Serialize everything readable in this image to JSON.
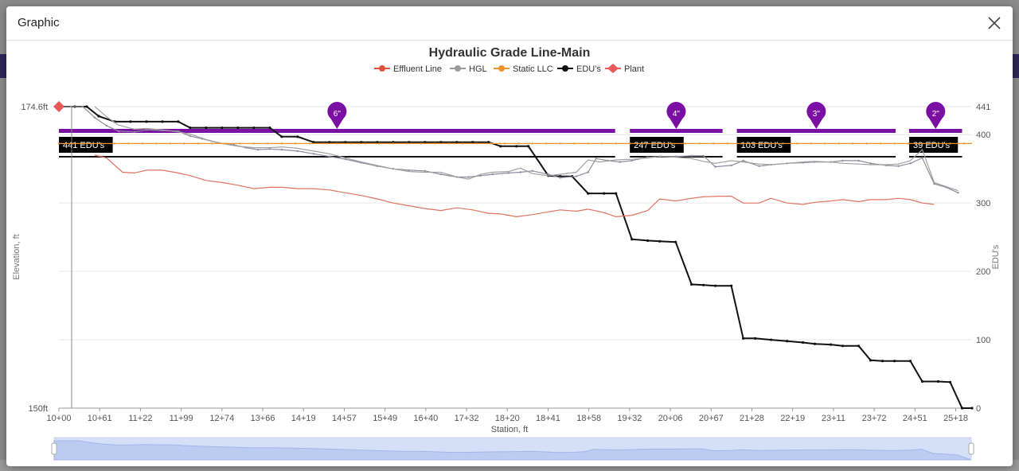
{
  "modal": {
    "title": "Graphic"
  },
  "chart_data": {
    "type": "line",
    "title": "Hydraulic Grade Line-Main",
    "xlabel": "Station, ft",
    "ylabel": "Elevation, ft",
    "y2label": "EDU's",
    "x_ticks": [
      "10+00",
      "10+61",
      "11+22",
      "11+99",
      "12+74",
      "13+66",
      "14+19",
      "14+57",
      "15+49",
      "16+40",
      "17+32",
      "18+20",
      "18+41",
      "18+58",
      "19+32",
      "20+06",
      "20+67",
      "21+28",
      "22+19",
      "23+11",
      "23+72",
      "24+51",
      "25+18"
    ],
    "y_left_ticks": [
      "174.6ft",
      "150ft"
    ],
    "y_right_ticks": [
      "441",
      "400",
      "300",
      "200",
      "100",
      "0"
    ],
    "y2lim": [
      0,
      441
    ],
    "grid": true,
    "legend_position": "top-center",
    "legend": [
      {
        "name": "Effluent Line",
        "color": "#e0503a",
        "marker": "circle"
      },
      {
        "name": "HGL",
        "color": "#9a9a9a",
        "marker": "circle"
      },
      {
        "name": "Static LLC",
        "color": "#f0922a",
        "marker": "circle"
      },
      {
        "name": "EDU's",
        "color": "#111111",
        "marker": "circle"
      },
      {
        "name": "Plant",
        "color": "#e85a5a",
        "marker": "diamond"
      }
    ],
    "pipe_segments": [
      {
        "label": "6\"",
        "edu_label": "441 EDU's",
        "x_start": 0,
        "x_end": 13.98
      },
      {
        "label": "4\"",
        "edu_label": "247 EDU's",
        "x_start": 14.35,
        "x_end": 16.68
      },
      {
        "label": "3\"",
        "edu_label": "103 EDU's",
        "x_start": 17.04,
        "x_end": 21.03
      },
      {
        "label": "2\"",
        "edu_label": "39 EDU's",
        "x_start": 21.37,
        "x_end": 22.7
      }
    ],
    "series": [
      {
        "name": "EDU's",
        "axis": "right",
        "color": "#111111",
        "points": [
          [
            0,
            441
          ],
          [
            0.4,
            441
          ],
          [
            0.7,
            441
          ],
          [
            1.0,
            427
          ],
          [
            1.4,
            419
          ],
          [
            1.8,
            419
          ],
          [
            2.2,
            419
          ],
          [
            2.6,
            419
          ],
          [
            3.0,
            419
          ],
          [
            3.3,
            410
          ],
          [
            3.7,
            410
          ],
          [
            4.1,
            410
          ],
          [
            4.5,
            410
          ],
          [
            4.9,
            410
          ],
          [
            5.3,
            410
          ],
          [
            5.6,
            397
          ],
          [
            6.0,
            397
          ],
          [
            6.4,
            389
          ],
          [
            6.8,
            389
          ],
          [
            7.2,
            389
          ],
          [
            7.6,
            389
          ],
          [
            8.0,
            389
          ],
          [
            8.4,
            389
          ],
          [
            8.8,
            389
          ],
          [
            9.2,
            389
          ],
          [
            9.6,
            389
          ],
          [
            10.0,
            389
          ],
          [
            10.4,
            389
          ],
          [
            10.8,
            389
          ],
          [
            11.1,
            383
          ],
          [
            11.5,
            383
          ],
          [
            11.8,
            383
          ],
          [
            12.3,
            340
          ],
          [
            12.6,
            339
          ],
          [
            12.9,
            339
          ],
          [
            13.3,
            314
          ],
          [
            13.7,
            314
          ],
          [
            14.0,
            314
          ],
          [
            14.4,
            247
          ],
          [
            14.8,
            245
          ],
          [
            15.1,
            244
          ],
          [
            15.5,
            243
          ],
          [
            15.9,
            181
          ],
          [
            16.2,
            180
          ],
          [
            16.5,
            179
          ],
          [
            16.9,
            179
          ],
          [
            17.2,
            102
          ],
          [
            17.5,
            102
          ],
          [
            17.9,
            100
          ],
          [
            18.3,
            98
          ],
          [
            18.7,
            96
          ],
          [
            19.0,
            94
          ],
          [
            19.4,
            93
          ],
          [
            19.7,
            91
          ],
          [
            20.1,
            91
          ],
          [
            20.4,
            70
          ],
          [
            20.7,
            69
          ],
          [
            21.0,
            69
          ],
          [
            21.4,
            69
          ],
          [
            21.7,
            39
          ],
          [
            22.1,
            39
          ],
          [
            22.4,
            38
          ],
          [
            22.7,
            0
          ],
          [
            22.95,
            0
          ]
        ]
      },
      {
        "name": "HGL",
        "axis": "right",
        "color": "#8c8c9e",
        "points": [
          [
            0,
            441
          ],
          [
            0.3,
            441
          ],
          [
            0.6,
            441
          ],
          [
            0.9,
            425
          ],
          [
            1.2,
            413
          ],
          [
            1.5,
            405
          ],
          [
            1.9,
            404
          ],
          [
            2.2,
            407
          ],
          [
            2.6,
            406
          ],
          [
            3.0,
            405
          ],
          [
            3.3,
            398
          ],
          [
            3.6,
            394
          ],
          [
            4.0,
            388
          ],
          [
            4.4,
            385
          ],
          [
            4.7,
            381
          ],
          [
            5.0,
            378
          ],
          [
            5.3,
            379
          ],
          [
            5.6,
            378
          ],
          [
            6.0,
            376
          ],
          [
            6.4,
            372
          ],
          [
            6.8,
            368
          ],
          [
            7.2,
            364
          ],
          [
            7.6,
            359
          ],
          [
            8.0,
            354
          ],
          [
            8.4,
            350
          ],
          [
            8.8,
            348
          ],
          [
            9.2,
            347
          ],
          [
            9.6,
            342
          ],
          [
            10.0,
            338
          ],
          [
            10.3,
            338
          ],
          [
            10.6,
            340
          ],
          [
            10.9,
            342
          ],
          [
            11.3,
            344
          ],
          [
            11.6,
            345
          ],
          [
            11.9,
            347
          ],
          [
            12.3,
            342
          ],
          [
            12.6,
            337
          ],
          [
            13.0,
            339
          ],
          [
            13.3,
            345
          ],
          [
            13.5,
            365
          ],
          [
            13.8,
            362
          ],
          [
            14.1,
            360
          ],
          [
            14.4,
            362
          ],
          [
            14.8,
            367
          ],
          [
            15.1,
            368
          ],
          [
            15.5,
            368
          ],
          [
            15.9,
            369
          ],
          [
            16.2,
            369
          ],
          [
            16.5,
            353
          ],
          [
            16.9,
            355
          ],
          [
            17.2,
            362
          ],
          [
            17.6,
            354
          ],
          [
            17.9,
            356
          ],
          [
            18.3,
            358
          ],
          [
            18.7,
            359
          ],
          [
            19.0,
            360
          ],
          [
            19.4,
            360
          ],
          [
            19.7,
            362
          ],
          [
            20.1,
            362
          ],
          [
            20.4,
            358
          ],
          [
            20.8,
            355
          ],
          [
            21.1,
            354
          ],
          [
            21.4,
            358
          ],
          [
            21.7,
            366
          ],
          [
            22.0,
            328
          ],
          [
            22.3,
            323
          ],
          [
            22.6,
            315
          ]
        ]
      },
      {
        "name": "HGL (secondary)",
        "axis": "right",
        "color": "#a0a0a0",
        "points": [
          [
            0.9,
            441
          ],
          [
            1.2,
            426
          ],
          [
            1.5,
            414
          ],
          [
            1.9,
            408
          ],
          [
            2.2,
            409
          ],
          [
            2.6,
            407
          ],
          [
            3.0,
            404
          ],
          [
            3.3,
            401
          ],
          [
            3.7,
            393
          ],
          [
            4.1,
            387
          ],
          [
            4.5,
            383
          ],
          [
            4.9,
            381
          ],
          [
            5.3,
            381
          ],
          [
            5.6,
            382
          ],
          [
            6.0,
            380
          ],
          [
            6.4,
            376
          ],
          [
            6.8,
            372
          ],
          [
            7.2,
            366
          ],
          [
            7.6,
            360
          ],
          [
            8.0,
            355
          ],
          [
            8.4,
            350
          ],
          [
            8.8,
            346
          ],
          [
            9.2,
            345
          ],
          [
            9.6,
            345
          ],
          [
            10.0,
            338
          ],
          [
            10.3,
            335
          ],
          [
            10.6,
            342
          ],
          [
            10.9,
            345
          ],
          [
            11.3,
            346
          ],
          [
            11.6,
            351
          ],
          [
            11.9,
            343
          ],
          [
            12.3,
            340
          ],
          [
            12.6,
            342
          ],
          [
            13.0,
            345
          ],
          [
            13.3,
            363
          ],
          [
            13.6,
            360
          ],
          [
            14.0,
            363
          ],
          [
            14.4,
            364
          ],
          [
            14.8,
            366
          ],
          [
            15.1,
            368
          ],
          [
            15.5,
            367
          ],
          [
            15.9,
            365
          ],
          [
            16.2,
            361
          ],
          [
            16.5,
            358
          ],
          [
            16.9,
            362
          ],
          [
            17.2,
            360
          ],
          [
            17.6,
            357
          ],
          [
            17.9,
            356
          ],
          [
            18.3,
            358
          ],
          [
            18.7,
            360
          ],
          [
            19.0,
            361
          ],
          [
            19.4,
            360
          ],
          [
            19.7,
            358
          ],
          [
            20.1,
            357
          ],
          [
            20.4,
            356
          ],
          [
            20.8,
            356
          ],
          [
            21.1,
            357
          ],
          [
            21.4,
            362
          ],
          [
            21.7,
            378
          ],
          [
            22.0,
            330
          ],
          [
            22.3,
            324
          ],
          [
            22.6,
            318
          ]
        ]
      },
      {
        "name": "Effluent Line",
        "axis": "right",
        "color": "#e0735e",
        "points": [
          [
            0.9,
            370
          ],
          [
            1.2,
            366
          ],
          [
            1.6,
            345
          ],
          [
            1.9,
            344
          ],
          [
            2.2,
            348
          ],
          [
            2.6,
            348
          ],
          [
            3.0,
            344
          ],
          [
            3.3,
            340
          ],
          [
            3.7,
            333
          ],
          [
            4.1,
            330
          ],
          [
            4.5,
            326
          ],
          [
            4.9,
            321
          ],
          [
            5.3,
            323
          ],
          [
            5.6,
            323
          ],
          [
            6.0,
            321
          ],
          [
            6.4,
            321
          ],
          [
            6.8,
            319
          ],
          [
            7.2,
            315
          ],
          [
            7.6,
            311
          ],
          [
            8.0,
            306
          ],
          [
            8.4,
            300
          ],
          [
            8.8,
            296
          ],
          [
            9.2,
            292
          ],
          [
            9.6,
            289
          ],
          [
            10.0,
            293
          ],
          [
            10.4,
            290
          ],
          [
            10.8,
            285
          ],
          [
            11.1,
            284
          ],
          [
            11.5,
            280
          ],
          [
            11.9,
            283
          ],
          [
            12.3,
            287
          ],
          [
            12.6,
            290
          ],
          [
            13.0,
            288
          ],
          [
            13.3,
            291
          ],
          [
            13.7,
            286
          ],
          [
            14.0,
            280
          ],
          [
            14.4,
            282
          ],
          [
            14.8,
            289
          ],
          [
            15.1,
            306
          ],
          [
            15.5,
            303
          ],
          [
            15.9,
            307
          ],
          [
            16.2,
            309
          ],
          [
            16.6,
            310
          ],
          [
            16.9,
            310
          ],
          [
            17.2,
            300
          ],
          [
            17.6,
            300
          ],
          [
            17.9,
            307
          ],
          [
            18.3,
            300
          ],
          [
            18.7,
            298
          ],
          [
            19.0,
            301
          ],
          [
            19.4,
            303
          ],
          [
            19.7,
            305
          ],
          [
            20.1,
            302
          ],
          [
            20.4,
            305
          ],
          [
            20.8,
            305
          ],
          [
            21.1,
            307
          ],
          [
            21.4,
            305
          ],
          [
            21.7,
            300
          ],
          [
            22.0,
            298
          ]
        ]
      },
      {
        "name": "Static LLC",
        "axis": "right",
        "color": "#f0922a",
        "constant": 387
      }
    ]
  }
}
